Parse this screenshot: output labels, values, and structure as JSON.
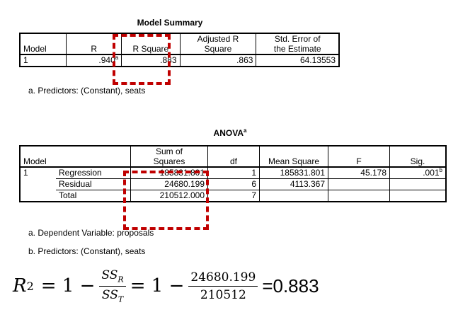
{
  "model_summary": {
    "title": "Model Summary",
    "headers": [
      "Model",
      "R",
      "R Square",
      "Adjusted R\nSquare",
      "Std. Error of\nthe Estimate"
    ],
    "row": {
      "model": "1",
      "r": ".940",
      "r_sup": "a",
      "r_square": ".883",
      "adj_r_square": ".863",
      "std_error": "64.13553"
    },
    "note": "a. Predictors: (Constant), seats"
  },
  "anova": {
    "title": "ANOVA",
    "title_sup": "a",
    "headers": {
      "model": "Model",
      "ss": "Sum of\nSquares",
      "df": "df",
      "ms": "Mean Square",
      "f": "F",
      "sig": "Sig."
    },
    "rows": [
      {
        "model": "1",
        "source": "Regression",
        "ss": "185831.801",
        "df": "1",
        "ms": "185831.801",
        "f": "45.178",
        "sig": ".001",
        "sig_sup": "b"
      },
      {
        "model": "",
        "source": "Residual",
        "ss": "24680.199",
        "df": "6",
        "ms": "4113.367",
        "f": "",
        "sig": ""
      },
      {
        "model": "",
        "source": "Total",
        "ss": "210512.000",
        "df": "7",
        "ms": "",
        "f": "",
        "sig": ""
      }
    ],
    "notes": [
      "a. Dependent Variable: proposals",
      "b. Predictors: (Constant), seats"
    ]
  },
  "formula": {
    "lhs": "R",
    "lhs_sup": "2",
    "eq1": "= 1 −",
    "frac1_num": "SS",
    "frac1_num_sub": "R",
    "frac1_den": "SS",
    "frac1_den_sub": "T",
    "eq2": "= 1 −",
    "frac2_num": "24680.199",
    "frac2_den": "210512",
    "result": "=0.883"
  },
  "highlight_color": "#c00000"
}
